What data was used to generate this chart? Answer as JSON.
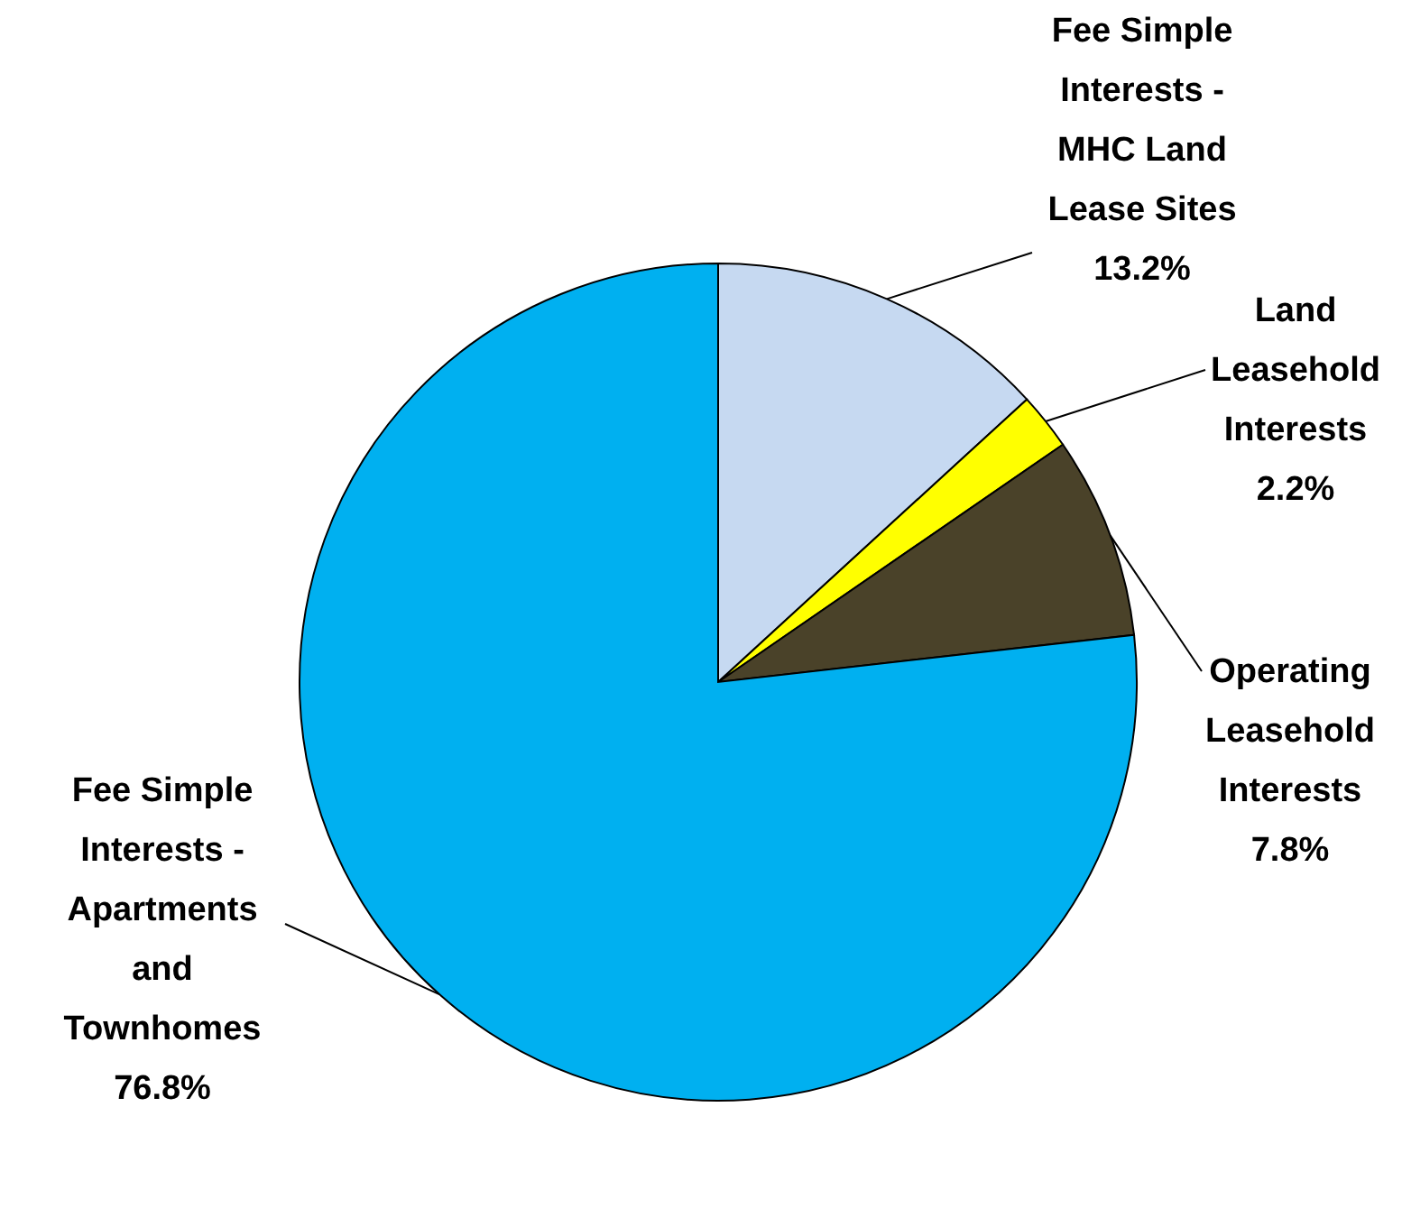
{
  "chart_data": {
    "type": "pie",
    "categories": [
      "Fee Simple Interests - MHC Land Lease Sites",
      "Land Leasehold Interests",
      "Operating Leasehold Interests",
      "Fee Simple Interests - Apartments and Townhomes"
    ],
    "values": [
      13.2,
      2.2,
      7.8,
      76.8
    ],
    "value_labels": [
      "13.2%",
      "2.2%",
      "7.8%",
      "76.8%"
    ],
    "colors": [
      "#c6d9f1",
      "#ffff00",
      "#4a4229",
      "#00b0f0"
    ]
  }
}
